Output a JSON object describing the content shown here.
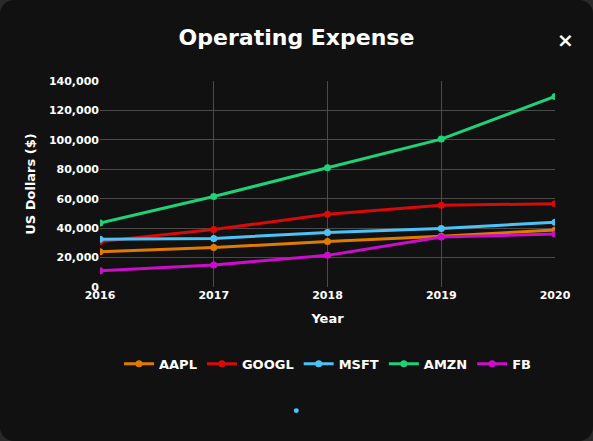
{
  "chart_data": {
    "type": "line",
    "title": "Operating Expense",
    "annotations": [
      "×"
    ],
    "x_label": "Year",
    "y_label": "US Dollars ($)",
    "x": [
      2016,
      2017,
      2018,
      2019,
      2020
    ],
    "series": [
      {
        "name": "AAPL",
        "color": "#e07b00",
        "values": [
          24000,
          26800,
          30900,
          34500,
          38700
        ]
      },
      {
        "name": "GOOGL",
        "color": "#d90a0a",
        "values": [
          31000,
          39000,
          49500,
          55500,
          56600
        ]
      },
      {
        "name": "MSFT",
        "color": "#4cc3f7",
        "values": [
          32500,
          33000,
          37000,
          39800,
          44000
        ]
      },
      {
        "name": "AMZN",
        "color": "#1fd27a",
        "values": [
          43500,
          61500,
          81000,
          100500,
          129500
        ]
      },
      {
        "name": "FB",
        "color": "#cc0ecc",
        "values": [
          11000,
          15000,
          21500,
          34000,
          36000
        ]
      }
    ],
    "xlim": [
      2016,
      2020
    ],
    "xticks": [
      2016,
      2017,
      2018,
      2019,
      2020
    ],
    "ylim": [
      0,
      140000
    ],
    "yticks": [
      0,
      {
        "value": 20000,
        "label": "20,000"
      },
      {
        "value": 40000,
        "label": "40,000"
      },
      {
        "value": 60000,
        "label": "60,000"
      },
      {
        "value": 80000,
        "label": "80,000"
      },
      {
        "value": 100000,
        "label": "100,000"
      },
      {
        "value": 120000,
        "label": "120,000"
      },
      {
        "value": 140000,
        "label": "140,000"
      }
    ],
    "grid": true,
    "legend": "bottom",
    "marker": "circle"
  }
}
